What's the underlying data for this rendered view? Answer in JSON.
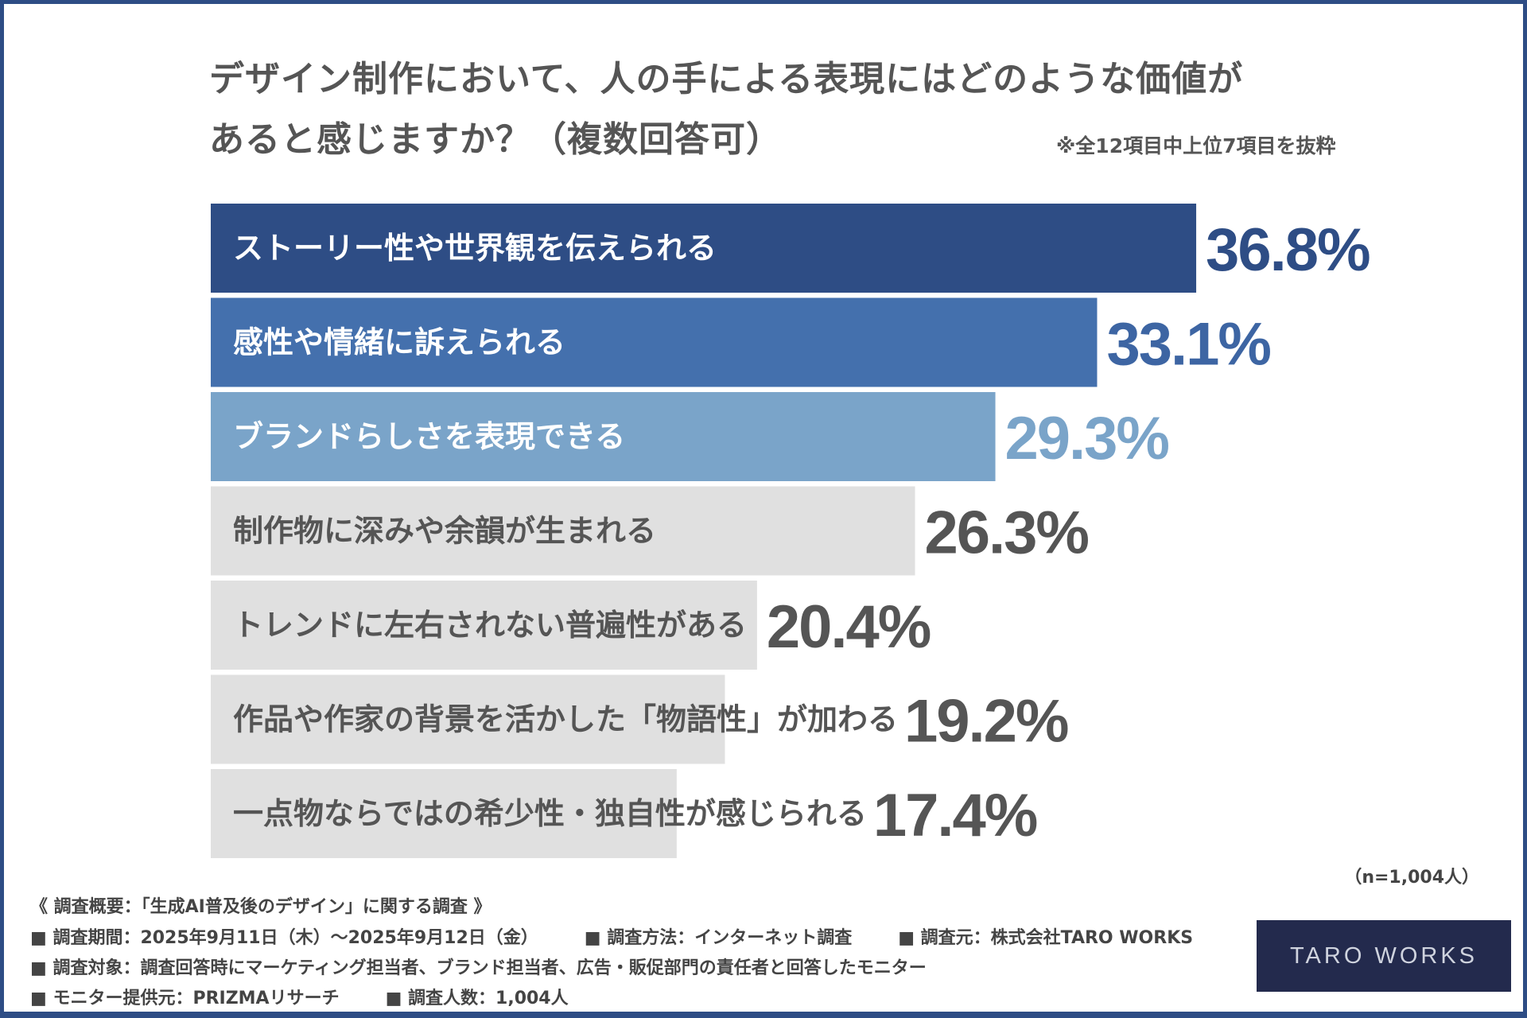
{
  "title_lines": [
    "デザイン制作において、人の手による表現にはどのような価値が",
    "あると感じますか？（複数回答可）"
  ],
  "note": "※全12項目中上位7項目を抜粋",
  "chart_data": {
    "type": "bar",
    "orientation": "horizontal",
    "categories": [
      "ストーリー性や世界観を伝えられる",
      "感性や情緒に訴えられる",
      "ブランドらしさを表現できる",
      "制作物に深みや余韻が生まれる",
      "トレンドに左右されない普遍性がある",
      "作品や作家の背景を活かした「物語性」が加わる",
      "一点物ならではの希少性・独自性が感じられる"
    ],
    "values": [
      36.8,
      33.1,
      29.3,
      26.3,
      20.4,
      19.2,
      17.4
    ],
    "value_labels": [
      "36.8%",
      "33.1%",
      "29.3%",
      "26.3%",
      "20.4%",
      "19.2%",
      "17.4%"
    ],
    "unit": "%",
    "bar_colors": [
      "#2e4d85",
      "#4470ad",
      "#7aa4c9",
      "#e0e0e0",
      "#e0e0e0",
      "#e0e0e0",
      "#e0e0e0"
    ],
    "label_colors": [
      "#ffffff",
      "#ffffff",
      "#ffffff",
      "#555555",
      "#555555",
      "#555555",
      "#555555"
    ],
    "value_colors": [
      "#2e4d85",
      "#3d65a3",
      "#7aa4c9",
      "#555555",
      "#555555",
      "#555555",
      "#555555"
    ],
    "grid": false
  },
  "sample_size": "（n=1,004人）",
  "footer": {
    "heading": "《 調査概要：「生成AI普及後のデザイン」に関する調査 》",
    "line1": [
      "■ 調査期間：2025年9月11日（木）～2025年9月12日（金）",
      "■ 調査方法：インターネット調査",
      "■ 調査元：株式会社TARO WORKS"
    ],
    "line2": "■ 調査対象：調査回答時にマーケティング担当者、ブランド担当者、広告・販促部門の責任者と回答したモニター",
    "line3": [
      "■ モニター提供元：PRIZMAリサーチ",
      "■ 調査人数：1,004人"
    ]
  },
  "logo_text": "TARO WORKS",
  "colors": {
    "border": "#2e4d85",
    "logo_bg": "#232a4d"
  }
}
